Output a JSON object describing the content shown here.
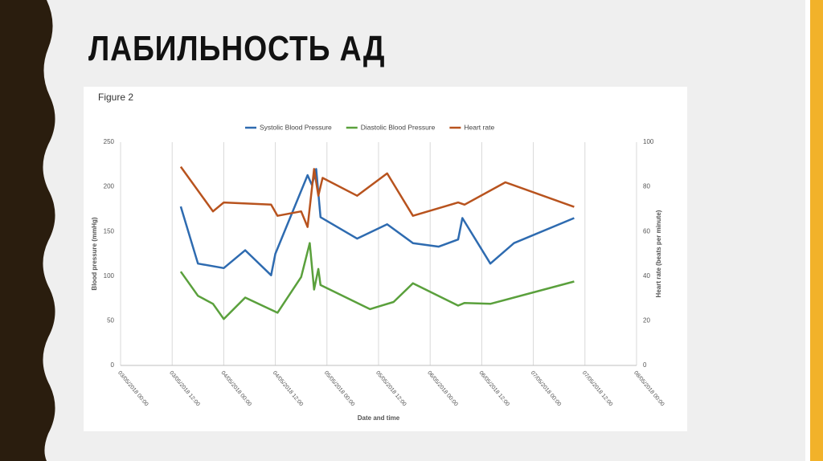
{
  "slide": {
    "title": "ЛАБИЛЬНОСТЬ АД"
  },
  "chart_data": {
    "type": "line",
    "title": "Figure 2",
    "x_label": "Date and time",
    "y_label": "Blood pressure (mmHg)",
    "y2_label": "Heart rate (beats per minute)",
    "xlim": [
      "03/05/2018 00:00",
      "08/05/2018 00:00"
    ],
    "xticks": [
      "03/05/2018 00:00",
      "03/05/2018 12:00",
      "04/05/2018 00:00",
      "04/05/2018 12:00",
      "05/05/2018 00:00",
      "05/05/2018 12:00",
      "06/05/2018 00:00",
      "06/05/2018 12:00",
      "07/05/2018 00:00",
      "07/05/2018 12:00",
      "08/05/2018 00:00"
    ],
    "ylim": [
      0,
      250
    ],
    "yticks": [
      0,
      50,
      100,
      150,
      200,
      250
    ],
    "y2lim": [
      0,
      100
    ],
    "y2ticks": [
      0,
      20,
      40,
      60,
      80,
      100
    ],
    "grid": true,
    "legend": "top",
    "series": [
      {
        "name": "Systolic Blood Pressure",
        "color": "#2e6bb0",
        "x": [
          "03/05/2018 14:00",
          "03/05/2018 18:00",
          "04/05/2018 00:00",
          "04/05/2018 05:00",
          "04/05/2018 11:00",
          "04/05/2018 12:00",
          "04/05/2018 19:30",
          "04/05/2018 20:30",
          "04/05/2018 21:30",
          "04/05/2018 22:30",
          "05/05/2018 07:00",
          "05/05/2018 14:00",
          "05/05/2018 20:00",
          "06/05/2018 02:00",
          "06/05/2018 06:30",
          "06/05/2018 07:30",
          "06/05/2018 14:00",
          "06/05/2018 19:30",
          "07/05/2018 09:30"
        ],
        "values": [
          178,
          114,
          109,
          129,
          101,
          125,
          213,
          202,
          220,
          166,
          142,
          158,
          137,
          133,
          141,
          165,
          114,
          137,
          165
        ]
      },
      {
        "name": "Diastolic Blood Pressure",
        "color": "#5aa03c",
        "x": [
          "03/05/2018 14:00",
          "03/05/2018 18:00",
          "03/05/2018 21:30",
          "04/05/2018 00:00",
          "04/05/2018 05:00",
          "04/05/2018 12:30",
          "04/05/2018 18:00",
          "04/05/2018 20:00",
          "04/05/2018 21:00",
          "04/05/2018 22:00",
          "04/05/2018 22:30",
          "05/05/2018 10:00",
          "05/05/2018 15:30",
          "05/05/2018 20:00",
          "06/05/2018 06:30",
          "06/05/2018 08:00",
          "06/05/2018 14:00",
          "07/05/2018 09:30"
        ],
        "values": [
          105,
          78,
          69,
          52,
          76,
          59,
          99,
          137,
          85,
          108,
          90,
          63,
          71,
          92,
          67,
          70,
          69,
          94
        ]
      },
      {
        "name": "Heart rate",
        "color": "#b8531e",
        "axis": "y2",
        "x": [
          "03/05/2018 14:00",
          "03/05/2018 21:30",
          "04/05/2018 00:00",
          "04/05/2018 11:00",
          "04/05/2018 12:30",
          "04/05/2018 18:00",
          "04/05/2018 19:30",
          "04/05/2018 21:00",
          "04/05/2018 22:00",
          "04/05/2018 23:00",
          "05/05/2018 07:00",
          "05/05/2018 14:00",
          "05/05/2018 20:00",
          "06/05/2018 06:30",
          "06/05/2018 08:00",
          "06/05/2018 17:30",
          "07/05/2018 09:30"
        ],
        "values": [
          89,
          69,
          73,
          72,
          67,
          69,
          62,
          88,
          76,
          84,
          76,
          86,
          67,
          73,
          72,
          82,
          71
        ]
      }
    ]
  }
}
